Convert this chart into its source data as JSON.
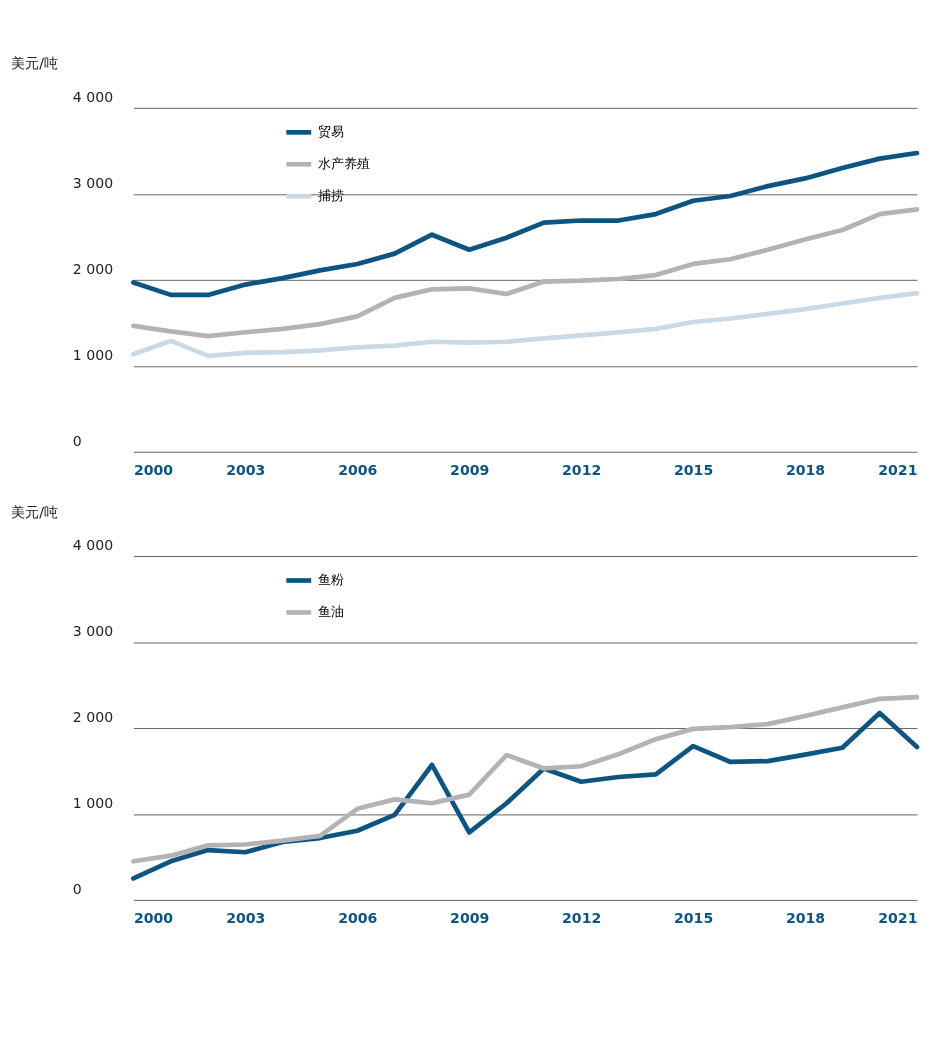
{
  "chart_data": [
    {
      "type": "line",
      "ylabel": "美元/吨",
      "x": [
        2000,
        2001,
        2002,
        2003,
        2004,
        2005,
        2006,
        2007,
        2008,
        2009,
        2010,
        2011,
        2012,
        2013,
        2014,
        2015,
        2016,
        2017,
        2018,
        2019,
        2020,
        2021
      ],
      "series": [
        {
          "name": "贸易",
          "color": "#0d5580",
          "values": [
            1970,
            1825,
            1825,
            1945,
            2020,
            2110,
            2185,
            2305,
            2525,
            2350,
            2490,
            2665,
            2690,
            2690,
            2765,
            2920,
            2975,
            3090,
            3180,
            3300,
            3410,
            3475
          ]
        },
        {
          "name": "水产养殖",
          "color": "#b3b3b3",
          "values": [
            1465,
            1400,
            1345,
            1390,
            1430,
            1485,
            1575,
            1790,
            1890,
            1900,
            1835,
            1980,
            1990,
            2010,
            2055,
            2185,
            2240,
            2350,
            2470,
            2580,
            2765,
            2820
          ]
        },
        {
          "name": "捕捞",
          "color": "#c9d9e6",
          "values": [
            1135,
            1290,
            1115,
            1150,
            1160,
            1180,
            1215,
            1235,
            1280,
            1270,
            1280,
            1320,
            1355,
            1390,
            1430,
            1510,
            1550,
            1605,
            1660,
            1725,
            1790,
            1845
          ]
        }
      ],
      "xlim": [
        2000,
        2021
      ],
      "xticks": [
        2000,
        2003,
        2006,
        2009,
        2012,
        2015,
        2018,
        2021
      ],
      "ylim": [
        0,
        4000
      ],
      "yticks": [
        0,
        {
          "value": 1000,
          "label": "1 000"
        },
        {
          "value": 2000,
          "label": "2 000"
        },
        {
          "value": 3000,
          "label": "3 000"
        },
        {
          "value": 4000,
          "label": "4 000"
        }
      ],
      "grid": "y",
      "legend": "top left",
      "marker": "none",
      "line_style": "solid"
    },
    {
      "type": "line",
      "ylabel": "美元/吨",
      "x": [
        2000,
        2001,
        2002,
        2003,
        2004,
        2005,
        2006,
        2007,
        2008,
        2009,
        2010,
        2011,
        2012,
        2013,
        2014,
        2015,
        2016,
        2017,
        2018,
        2019,
        2020,
        2021
      ],
      "series": [
        {
          "name": "鱼粉",
          "color": "#0d5580",
          "values": [
            250,
            450,
            580,
            555,
            675,
            720,
            805,
            990,
            1570,
            785,
            1125,
            1530,
            1375,
            1430,
            1460,
            1790,
            1605,
            1615,
            1690,
            1770,
            2175,
            1780
          ]
        },
        {
          "name": "鱼油",
          "color": "#b3b3b3",
          "values": [
            450,
            515,
            635,
            645,
            690,
            745,
            1060,
            1170,
            1125,
            1225,
            1685,
            1530,
            1555,
            1695,
            1870,
            1990,
            2010,
            2045,
            2140,
            2240,
            2340,
            2360
          ]
        }
      ],
      "xlim": [
        2000,
        2021
      ],
      "xticks": [
        2000,
        2003,
        2006,
        2009,
        2012,
        2015,
        2018,
        2021
      ],
      "ylim": [
        0,
        4000
      ],
      "yticks": [
        0,
        {
          "value": 1000,
          "label": "1 000"
        },
        {
          "value": 2000,
          "label": "2 000"
        },
        {
          "value": 3000,
          "label": "3 000"
        },
        {
          "value": 4000,
          "label": "4 000"
        }
      ],
      "grid": "y",
      "legend": "top left",
      "marker": "none",
      "line_style": "solid"
    }
  ]
}
